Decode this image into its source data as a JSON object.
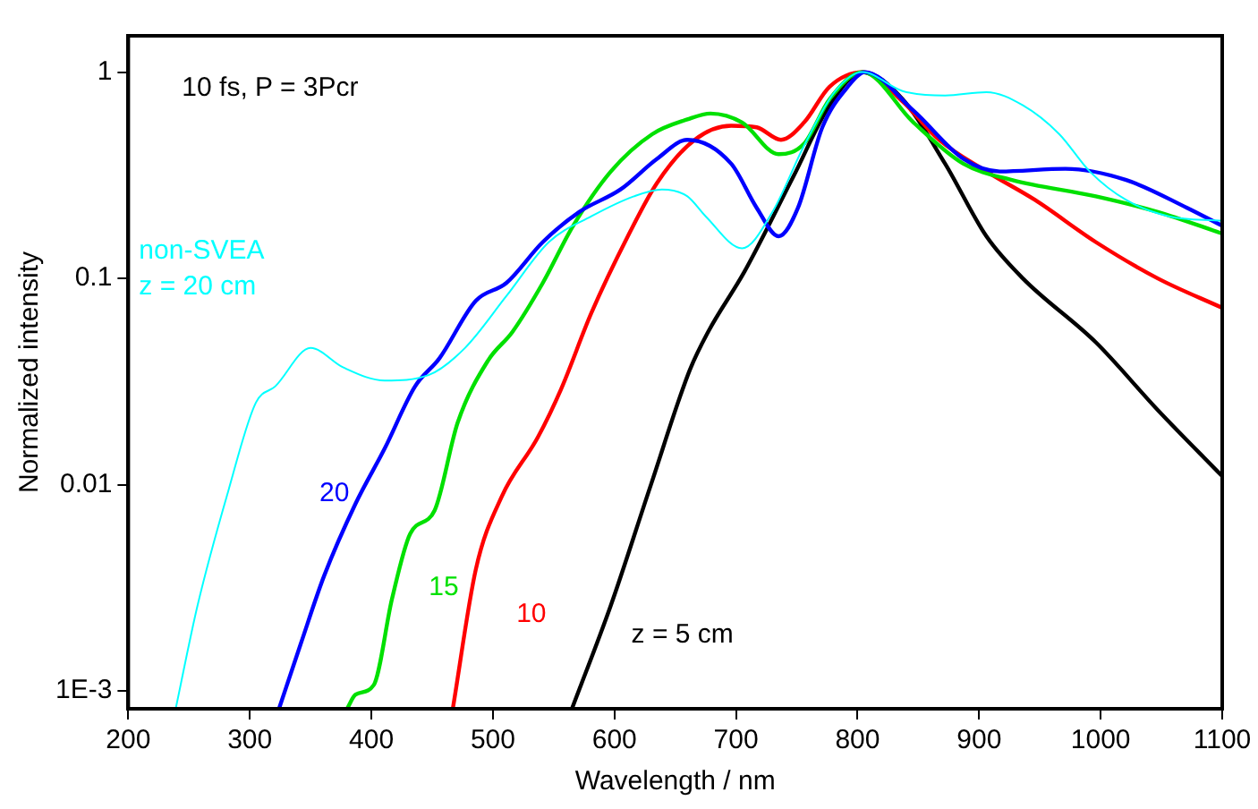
{
  "chart_data": {
    "type": "line",
    "xlabel": "Wavelength / nm",
    "ylabel": "Normalized intensity",
    "log": "y",
    "grid": false,
    "legend": false,
    "marker": "none",
    "line_style": "solid",
    "xlim": [
      200,
      1100
    ],
    "xticks": [
      200,
      300,
      400,
      500,
      600,
      700,
      800,
      900,
      1000,
      1100
    ],
    "ylim": [
      0.00082,
      1.5
    ],
    "yticks": [
      1,
      0.1,
      0.01,
      {
        "value": 0.001,
        "label": "1E-3"
      }
    ],
    "annotations": [
      "10 fs, P = 3Pcr"
    ],
    "series": [
      {
        "name": "non-SVEA\nz = 20 cm",
        "color": "#00ffff",
        "x": [
          239,
          257,
          282,
          305,
          321,
          350,
          377,
          411,
          447,
          477,
          511,
          546,
          581,
          616,
          639,
          660,
          675,
          705,
          730,
          756,
          781,
          804,
          837,
          872,
          906,
          936,
          966,
          991,
          1021,
          1056,
          1100
        ],
        "values": [
          0.00082,
          0.0026,
          0.0092,
          0.025,
          0.03,
          0.046,
          0.037,
          0.032,
          0.034,
          0.046,
          0.082,
          0.15,
          0.2,
          0.25,
          0.27,
          0.25,
          0.2,
          0.14,
          0.21,
          0.44,
          0.8,
          1,
          0.81,
          0.77,
          0.8,
          0.69,
          0.5,
          0.33,
          0.24,
          0.2,
          0.19
        ]
      },
      {
        "name": "20",
        "color": "#0000ff",
        "x": [
          324,
          342,
          361,
          387,
          411,
          436,
          456,
          486,
          511,
          541,
          571,
          605,
          635,
          660,
          696,
          717,
          735,
          751,
          771,
          792,
          806,
          846,
          887,
          917,
          971,
          1021,
          1071,
          1100
        ],
        "values": [
          0.00082,
          0.0017,
          0.0036,
          0.0081,
          0.015,
          0.03,
          0.041,
          0.078,
          0.095,
          0.15,
          0.21,
          0.27,
          0.38,
          0.47,
          0.36,
          0.22,
          0.16,
          0.22,
          0.54,
          0.85,
          1,
          0.65,
          0.38,
          0.33,
          0.34,
          0.3,
          0.22,
          0.18
        ]
      },
      {
        "name": "15",
        "color": "#00e000",
        "x": [
          380,
          387,
          402,
          417,
          432,
          452,
          471,
          496,
          516,
          541,
          566,
          597,
          631,
          660,
          679,
          705,
          735,
          756,
          777,
          804,
          846,
          887,
          927,
          996,
          1047,
          1100
        ],
        "values": [
          0.00082,
          0.00096,
          0.00107,
          0.0028,
          0.0058,
          0.0075,
          0.02,
          0.04,
          0.055,
          0.095,
          0.18,
          0.33,
          0.5,
          0.59,
          0.63,
          0.57,
          0.4,
          0.45,
          0.74,
          1,
          0.57,
          0.36,
          0.3,
          0.25,
          0.21,
          0.165
        ]
      },
      {
        "name": "10",
        "color": "#ff0000",
        "x": [
          467,
          486,
          507,
          537,
          556,
          581,
          611,
          635,
          666,
          696,
          717,
          737,
          756,
          777,
          804,
          837,
          867,
          906,
          946,
          996,
          1047,
          1100
        ],
        "values": [
          0.00082,
          0.0039,
          0.0087,
          0.017,
          0.029,
          0.068,
          0.16,
          0.29,
          0.47,
          0.55,
          0.54,
          0.47,
          0.57,
          0.85,
          1,
          0.72,
          0.47,
          0.33,
          0.24,
          0.15,
          0.1,
          0.072
        ]
      },
      {
        "name": "z = 5 cm",
        "color": "#000000",
        "x": [
          565,
          597,
          630,
          662,
          677,
          707,
          747,
          777,
          804,
          837,
          872,
          906,
          936,
          996,
          1047,
          1100
        ],
        "values": [
          0.00082,
          0.0026,
          0.01,
          0.036,
          0.055,
          0.108,
          0.31,
          0.69,
          1,
          0.74,
          0.36,
          0.16,
          0.1,
          0.049,
          0.023,
          0.011
        ]
      }
    ]
  }
}
